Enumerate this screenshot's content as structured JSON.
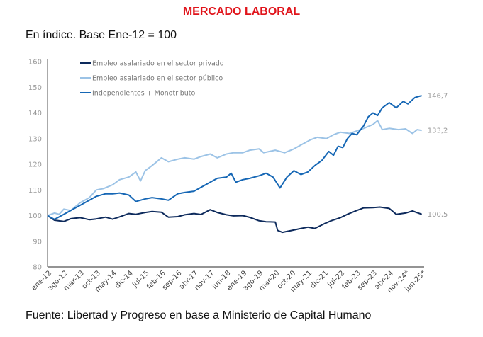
{
  "title": "MERCADO LABORAL",
  "subtitle": "En índice. Base Ene-12 = 100",
  "source": "Fuente: Libertad y Progreso en base a Ministerio de Capital Humano",
  "chart_data": {
    "type": "line",
    "x_unit": "months since ene-12",
    "x_tick_labels": [
      "ene-12",
      "ago-12",
      "mar-13",
      "oct-13",
      "may-14",
      "dic-14",
      "jul-15",
      "feb-16",
      "sep-16",
      "abr-17",
      "nov-17",
      "jun-18",
      "ene-19",
      "ago-19",
      "mar-20",
      "oct-20",
      "may-21",
      "dic-21",
      "jul-22",
      "feb-23",
      "sep-23",
      "abr-24",
      "nov-24*",
      "jun-25*"
    ],
    "x_tick_step_months": 7,
    "xlim": [
      0,
      162
    ],
    "ylim": [
      80,
      160
    ],
    "y_ticks": [
      80,
      90,
      100,
      110,
      120,
      130,
      140,
      150,
      160
    ],
    "legend_position": "top-left",
    "series": [
      {
        "name": "Empleo asalariado en el sector privado",
        "color": "#0d2a5c",
        "end_label": "100,5",
        "points": [
          [
            0,
            100
          ],
          [
            3,
            98.2
          ],
          [
            7,
            97.7
          ],
          [
            10,
            98.8
          ],
          [
            14,
            99.2
          ],
          [
            18,
            98.4
          ],
          [
            21,
            98.7
          ],
          [
            25,
            99.4
          ],
          [
            28,
            98.6
          ],
          [
            31,
            99.5
          ],
          [
            35,
            100.8
          ],
          [
            38,
            100.5
          ],
          [
            42,
            101.2
          ],
          [
            45,
            101.6
          ],
          [
            49,
            101.3
          ],
          [
            52,
            99.4
          ],
          [
            56,
            99.6
          ],
          [
            59,
            100.3
          ],
          [
            63,
            100.8
          ],
          [
            66,
            100.4
          ],
          [
            70,
            102.3
          ],
          [
            73,
            101.2
          ],
          [
            77,
            100.3
          ],
          [
            80,
            99.9
          ],
          [
            84,
            100.0
          ],
          [
            87,
            99.3
          ],
          [
            91,
            98.0
          ],
          [
            94,
            97.6
          ],
          [
            98,
            97.5
          ],
          [
            99,
            94.2
          ],
          [
            101,
            93.5
          ],
          [
            105,
            94.2
          ],
          [
            108,
            94.8
          ],
          [
            112,
            95.5
          ],
          [
            115,
            95.0
          ],
          [
            119,
            96.8
          ],
          [
            122,
            98.0
          ],
          [
            126,
            99.2
          ],
          [
            129,
            100.5
          ],
          [
            133,
            102.0
          ],
          [
            136,
            103.0
          ],
          [
            140,
            103.1
          ],
          [
            143,
            103.3
          ],
          [
            147,
            102.8
          ],
          [
            150,
            100.5
          ],
          [
            154,
            101.0
          ],
          [
            157,
            101.8
          ],
          [
            161,
            100.5
          ]
        ]
      },
      {
        "name": "Empleo asalariado en el sector público",
        "color": "#9cc3e6",
        "end_label": "133,2",
        "points": [
          [
            0,
            100
          ],
          [
            3,
            101
          ],
          [
            5,
            100.5
          ],
          [
            7,
            102.5
          ],
          [
            10,
            102
          ],
          [
            14,
            105
          ],
          [
            18,
            107
          ],
          [
            21,
            110
          ],
          [
            24,
            110.5
          ],
          [
            28,
            112
          ],
          [
            31,
            114
          ],
          [
            35,
            115
          ],
          [
            38,
            117
          ],
          [
            40,
            113.5
          ],
          [
            42,
            117.5
          ],
          [
            45,
            119.5
          ],
          [
            49,
            122.5
          ],
          [
            52,
            121
          ],
          [
            56,
            122
          ],
          [
            59,
            122.5
          ],
          [
            63,
            122
          ],
          [
            66,
            123
          ],
          [
            70,
            124
          ],
          [
            73,
            122.5
          ],
          [
            77,
            124
          ],
          [
            80,
            124.5
          ],
          [
            84,
            124.5
          ],
          [
            87,
            125.5
          ],
          [
            91,
            126
          ],
          [
            93,
            124.5
          ],
          [
            98,
            125.5
          ],
          [
            102,
            124.5
          ],
          [
            106,
            126
          ],
          [
            109,
            127.5
          ],
          [
            113,
            129.5
          ],
          [
            116,
            130.5
          ],
          [
            120,
            130
          ],
          [
            123,
            131.5
          ],
          [
            126,
            132.5
          ],
          [
            130,
            132
          ],
          [
            133,
            133
          ],
          [
            136,
            134
          ],
          [
            140,
            135.5
          ],
          [
            142,
            137
          ],
          [
            144,
            133.5
          ],
          [
            147,
            134
          ],
          [
            151,
            133.5
          ],
          [
            154,
            133.8
          ],
          [
            157,
            132
          ],
          [
            159,
            133.5
          ],
          [
            161,
            133.2
          ]
        ]
      },
      {
        "name": "Independientes + Monotributo",
        "color": "#1667b5",
        "end_label": "146,7",
        "points": [
          [
            0,
            100
          ],
          [
            3,
            98.5
          ],
          [
            7,
            100.5
          ],
          [
            10,
            102
          ],
          [
            14,
            104
          ],
          [
            18,
            106
          ],
          [
            21,
            107.5
          ],
          [
            25,
            108.5
          ],
          [
            28,
            108.5
          ],
          [
            31,
            108.8
          ],
          [
            35,
            108
          ],
          [
            38,
            105.5
          ],
          [
            42,
            106.5
          ],
          [
            45,
            107
          ],
          [
            49,
            106.5
          ],
          [
            52,
            106
          ],
          [
            56,
            108.5
          ],
          [
            59,
            109
          ],
          [
            63,
            109.5
          ],
          [
            66,
            111
          ],
          [
            70,
            113
          ],
          [
            73,
            114.5
          ],
          [
            77,
            115
          ],
          [
            79,
            116.5
          ],
          [
            81,
            113
          ],
          [
            84,
            114
          ],
          [
            87,
            114.5
          ],
          [
            91,
            115.5
          ],
          [
            94,
            116.5
          ],
          [
            97,
            115
          ],
          [
            100,
            110.8
          ],
          [
            103,
            115
          ],
          [
            106,
            117.5
          ],
          [
            109,
            116
          ],
          [
            112,
            117
          ],
          [
            115,
            119.5
          ],
          [
            118,
            121.5
          ],
          [
            121,
            125
          ],
          [
            123,
            123.5
          ],
          [
            125,
            127
          ],
          [
            127,
            126.5
          ],
          [
            129,
            130
          ],
          [
            131,
            132
          ],
          [
            133,
            131.5
          ],
          [
            136,
            135
          ],
          [
            138,
            138.5
          ],
          [
            140,
            140
          ],
          [
            142,
            139
          ],
          [
            144,
            142
          ],
          [
            147,
            144
          ],
          [
            150,
            142
          ],
          [
            153,
            144.5
          ],
          [
            155,
            143.5
          ],
          [
            158,
            146
          ],
          [
            160,
            146.5
          ],
          [
            161,
            146.7
          ]
        ]
      }
    ]
  }
}
